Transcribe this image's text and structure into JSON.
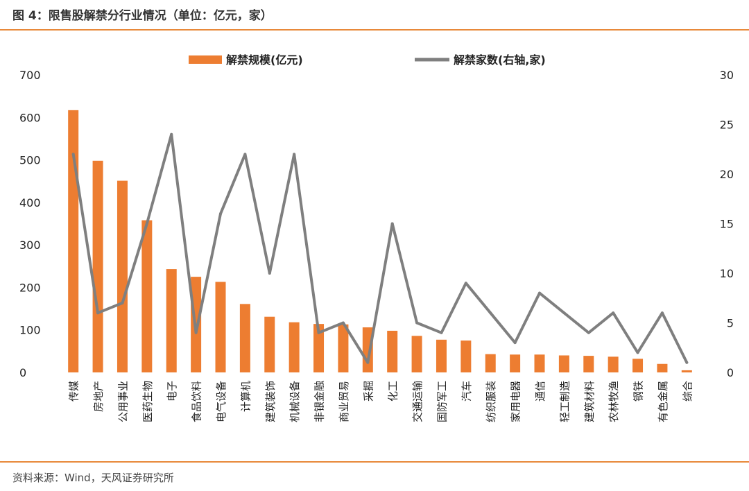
{
  "header": {
    "title": "图 4：限售股解禁分行业情况（单位：亿元，家）"
  },
  "footer": {
    "source": "资料来源：Wind，天风证券研究所"
  },
  "colors": {
    "bar": "#ed7d31",
    "line": "#7f7f7f",
    "rule": "#e8893a"
  },
  "chart_data": {
    "type": "bar",
    "title": "限售股解禁分行业情况（单位：亿元，家）",
    "categories": [
      "传媒",
      "房地产",
      "公用事业",
      "医药生物",
      "电子",
      "食品饮料",
      "电气设备",
      "计算机",
      "建筑装饰",
      "机械设备",
      "非银金融",
      "商业贸易",
      "采掘",
      "化工",
      "交通运输",
      "国防军工",
      "汽车",
      "纺织服装",
      "家用电器",
      "通信",
      "轻工制造",
      "建筑材料",
      "农林牧渔",
      "钢铁",
      "有色金属",
      "综合"
    ],
    "series": [
      {
        "name": "解禁规模(亿元)",
        "type": "bar",
        "axis": "left",
        "values": [
          617,
          498,
          451,
          358,
          243,
          225,
          213,
          161,
          131,
          118,
          114,
          113,
          106,
          98,
          86,
          77,
          75,
          43,
          42,
          42,
          40,
          39,
          37,
          32,
          20,
          5
        ]
      },
      {
        "name": "解禁家数(右轴,家)",
        "type": "line",
        "axis": "right",
        "values": [
          22,
          6,
          7,
          15,
          24,
          4,
          16,
          22,
          10,
          22,
          4,
          5,
          1,
          15,
          5,
          4,
          9,
          6,
          3,
          8,
          6,
          4,
          6,
          2,
          6,
          1
        ]
      }
    ],
    "y_left": {
      "min": 0,
      "max": 700,
      "ticks": [
        0,
        100,
        200,
        300,
        400,
        500,
        600,
        700
      ]
    },
    "y_right": {
      "min": 0,
      "max": 30,
      "ticks": [
        0,
        5,
        10,
        15,
        20,
        25,
        30
      ]
    },
    "legend_position": "top-center",
    "grid": false
  }
}
